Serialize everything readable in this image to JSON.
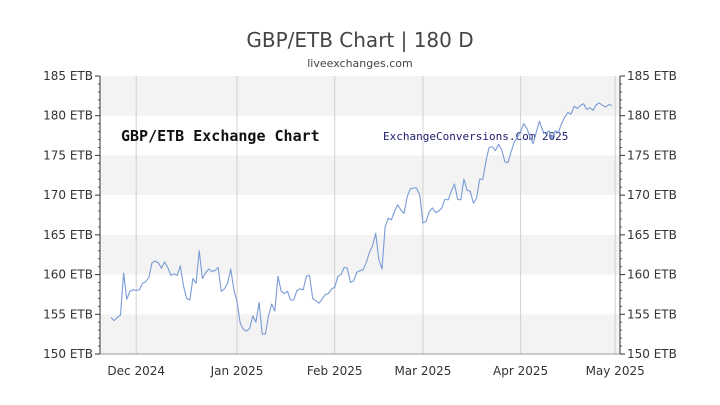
{
  "chart_data": {
    "type": "line",
    "title": "GBP/ETB Chart | 180 D",
    "subtitle": "liveexchanges.com",
    "annotations": [
      "GBP/ETB Exchange Chart",
      "ExchangeConversions.Com 2025"
    ],
    "xlabel": "",
    "ylabel": "",
    "ylim": [
      150,
      185
    ],
    "y_ticks": [
      150,
      155,
      160,
      165,
      170,
      175,
      180,
      185
    ],
    "y_tick_labels": [
      "150 ETB",
      "155 ETB",
      "160 ETB",
      "165 ETB",
      "170 ETB",
      "175 ETB",
      "180 ETB",
      "185 ETB"
    ],
    "x_tick_labels": [
      "Dec 2024",
      "Jan 2025",
      "Feb 2025",
      "Mar 2025",
      "Apr 2025",
      "May 2025"
    ],
    "x_tick_index": [
      8,
      40,
      71,
      99,
      130,
      160
    ],
    "grid": true,
    "line_color": "#7a9bd6",
    "band_color": "#f3f3f3",
    "values": [
      154.6,
      154.2,
      154.6,
      154.9,
      160.2,
      156.9,
      157.9,
      158.1,
      158.0,
      158.1,
      158.9,
      159.1,
      159.6,
      161.5,
      161.7,
      161.5,
      160.8,
      161.6,
      160.9,
      159.9,
      160.1,
      159.9,
      161.1,
      158.6,
      157.0,
      156.8,
      159.5,
      158.9,
      163.0,
      159.5,
      160.2,
      160.7,
      160.4,
      160.5,
      160.9,
      157.9,
      158.2,
      158.9,
      160.7,
      158.1,
      156.6,
      153.9,
      153.1,
      152.9,
      153.2,
      154.8,
      154.0,
      156.5,
      152.5,
      152.5,
      154.8,
      156.3,
      155.4,
      159.8,
      157.9,
      157.6,
      157.9,
      156.8,
      156.8,
      158.0,
      158.2,
      158.1,
      159.8,
      159.9,
      157.0,
      156.7,
      156.4,
      156.9,
      157.5,
      157.6,
      158.2,
      158.4,
      159.8,
      160.0,
      160.9,
      160.8,
      159.0,
      159.2,
      160.3,
      160.5,
      160.6,
      161.5,
      162.8,
      163.6,
      165.2,
      161.9,
      160.7,
      166.0,
      167.1,
      166.9,
      168.0,
      168.8,
      168.1,
      167.7,
      169.8,
      170.8,
      170.9,
      170.9,
      170.0,
      166.5,
      166.7,
      167.9,
      168.4,
      167.8,
      168.0,
      168.4,
      169.5,
      169.4,
      170.5,
      171.4,
      169.5,
      169.4,
      172.0,
      170.6,
      170.5,
      169.0,
      169.6,
      172.0,
      172.0,
      174.3,
      176.0,
      176.1,
      175.6,
      176.4,
      175.7,
      174.2,
      174.1,
      175.5,
      176.7,
      177.3,
      178.0,
      179.0,
      178.4,
      177.3,
      176.5,
      178.0,
      179.3,
      178.1,
      177.7,
      178.1,
      177.1,
      178.1,
      177.9,
      179.0,
      179.8,
      180.4,
      180.2,
      181.2,
      180.9,
      181.3,
      181.5,
      180.8,
      181.0,
      180.7,
      181.4,
      181.6,
      181.3,
      181.1,
      181.4,
      181.3
    ]
  }
}
